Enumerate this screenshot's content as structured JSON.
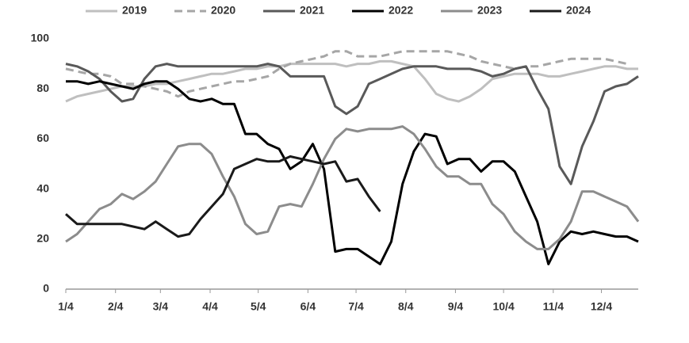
{
  "chart_data": {
    "type": "line",
    "x": [
      0,
      7,
      14,
      21,
      28,
      35,
      42,
      49,
      56,
      63,
      70,
      77,
      84,
      91,
      98,
      105,
      112,
      119,
      126,
      133,
      140,
      147,
      154,
      161,
      168,
      175,
      182,
      189,
      196,
      203,
      210,
      217,
      224,
      231,
      238,
      245,
      252,
      259,
      266,
      273,
      280,
      287,
      294,
      301,
      308,
      315,
      322,
      329,
      336,
      343,
      350,
      357
    ],
    "xlim": [
      0,
      357
    ],
    "xticks": [
      {
        "value": 0,
        "label": "1/4"
      },
      {
        "value": 31,
        "label": "2/4"
      },
      {
        "value": 59,
        "label": "3/4"
      },
      {
        "value": 90,
        "label": "4/4"
      },
      {
        "value": 120,
        "label": "5/4"
      },
      {
        "value": 151,
        "label": "6/4"
      },
      {
        "value": 181,
        "label": "7/4"
      },
      {
        "value": 212,
        "label": "8/4"
      },
      {
        "value": 243,
        "label": "9/4"
      },
      {
        "value": 273,
        "label": "10/4"
      },
      {
        "value": 304,
        "label": "11/4"
      },
      {
        "value": 334,
        "label": "12/4"
      }
    ],
    "ylim": [
      0,
      100
    ],
    "yticks": [
      0,
      20,
      40,
      60,
      80,
      100
    ],
    "grid": false,
    "legend": "top",
    "series": [
      {
        "name": "2019",
        "color": "#bfbfbf",
        "dashed": false,
        "values": [
          75,
          77,
          78,
          79,
          80,
          81,
          81,
          81,
          82,
          82,
          83,
          84,
          85,
          86,
          86,
          87,
          88,
          88,
          89,
          89,
          90,
          90,
          90,
          90,
          90,
          89,
          90,
          90,
          91,
          91,
          90,
          89,
          84,
          78,
          76,
          75,
          77,
          80,
          84,
          85,
          86,
          86,
          86,
          85,
          85,
          86,
          87,
          88,
          89,
          89,
          88,
          88
        ]
      },
      {
        "name": "2020",
        "color": "#a6a6a6",
        "dashed": true,
        "values": [
          88,
          87,
          86,
          86,
          85,
          82,
          82,
          81,
          80,
          79,
          77,
          79,
          80,
          81,
          82,
          83,
          83,
          84,
          85,
          88,
          90,
          91,
          92,
          93,
          95,
          95,
          93,
          93,
          93,
          94,
          95,
          95,
          95,
          95,
          95,
          94,
          93,
          91,
          90,
          89,
          88,
          89,
          89,
          90,
          91,
          92,
          92,
          92,
          92,
          91,
          90,
          null
        ]
      },
      {
        "name": "2021",
        "color": "#595959",
        "dashed": false,
        "values": [
          90,
          89,
          87,
          84,
          79,
          75,
          76,
          84,
          89,
          90,
          89,
          89,
          89,
          89,
          89,
          89,
          89,
          89,
          90,
          89,
          85,
          85,
          85,
          85,
          73,
          70,
          73,
          82,
          84,
          86,
          88,
          89,
          89,
          89,
          88,
          88,
          88,
          87,
          85,
          86,
          88,
          89,
          80,
          72,
          49,
          42,
          57,
          67,
          79,
          81,
          82,
          85
        ]
      },
      {
        "name": "2022",
        "color": "#000000",
        "dashed": false,
        "values": [
          83,
          83,
          82,
          83,
          82,
          81,
          80,
          82,
          83,
          83,
          80,
          76,
          75,
          76,
          74,
          74,
          62,
          62,
          58,
          56,
          48,
          51,
          58,
          48,
          15,
          16,
          16,
          13,
          10,
          19,
          42,
          55,
          62,
          61,
          50,
          52,
          52,
          47,
          51,
          51,
          47,
          37,
          27,
          10,
          19,
          23,
          22,
          23,
          22,
          21,
          21,
          19
        ]
      },
      {
        "name": "2023",
        "color": "#8c8c8c",
        "dashed": false,
        "values": [
          19,
          22,
          27,
          32,
          34,
          38,
          36,
          39,
          43,
          50,
          57,
          58,
          58,
          54,
          45,
          37,
          26,
          22,
          23,
          33,
          34,
          33,
          42,
          52,
          60,
          64,
          63,
          64,
          64,
          64,
          65,
          62,
          56,
          49,
          45,
          45,
          42,
          42,
          34,
          30,
          23,
          19,
          16,
          16,
          20,
          27,
          39,
          39,
          37,
          35,
          33,
          27
        ]
      },
      {
        "name": "2024",
        "color": "#1a1a1a",
        "dashed": false,
        "values": [
          30,
          26,
          26,
          26,
          26,
          26,
          25,
          24,
          27,
          24,
          21,
          22,
          28,
          33,
          38,
          48,
          50,
          52,
          51,
          51,
          53,
          52,
          51,
          50,
          51,
          43,
          44,
          37,
          31,
          null,
          null,
          null,
          null,
          null,
          null,
          null,
          null,
          null,
          null,
          null,
          null,
          null,
          null,
          null,
          null,
          null,
          null,
          null,
          null,
          null,
          null,
          null
        ]
      }
    ]
  }
}
